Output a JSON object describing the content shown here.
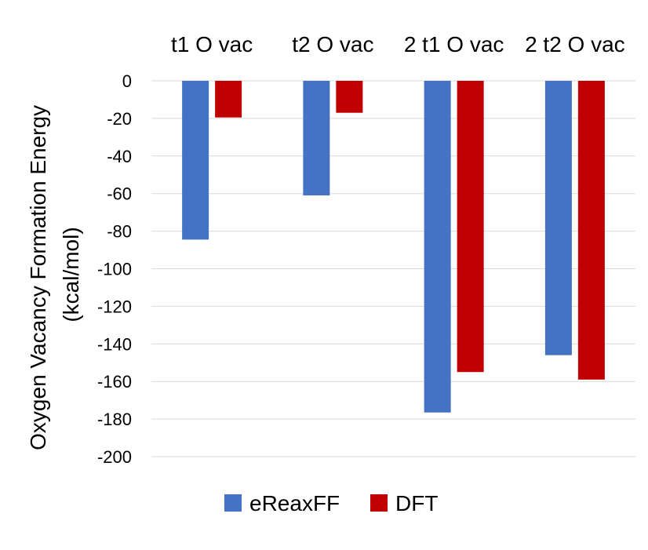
{
  "chart_data": {
    "type": "bar",
    "categories": [
      "t1 O vac",
      "t2 O vac",
      "2 t1 O vac",
      "2 t2 O vac"
    ],
    "series": [
      {
        "name": "eReaxFF",
        "color": "#4472C4",
        "values": [
          -84.5,
          -61,
          -176.5,
          -146
        ]
      },
      {
        "name": "DFT",
        "color": "#C00000",
        "values": [
          -19.5,
          -17,
          -155,
          -159
        ]
      }
    ],
    "ylabel_lines": [
      "Oxygen Vacancy Formation Energy",
      "(kcal/mol)"
    ],
    "ylim": [
      -200,
      0
    ],
    "yticks": [
      0,
      -20,
      -40,
      -60,
      -80,
      -100,
      -120,
      -140,
      -160,
      -180,
      -200
    ],
    "grid": true,
    "category_labels_position": "top",
    "legend_position": "bottom"
  }
}
